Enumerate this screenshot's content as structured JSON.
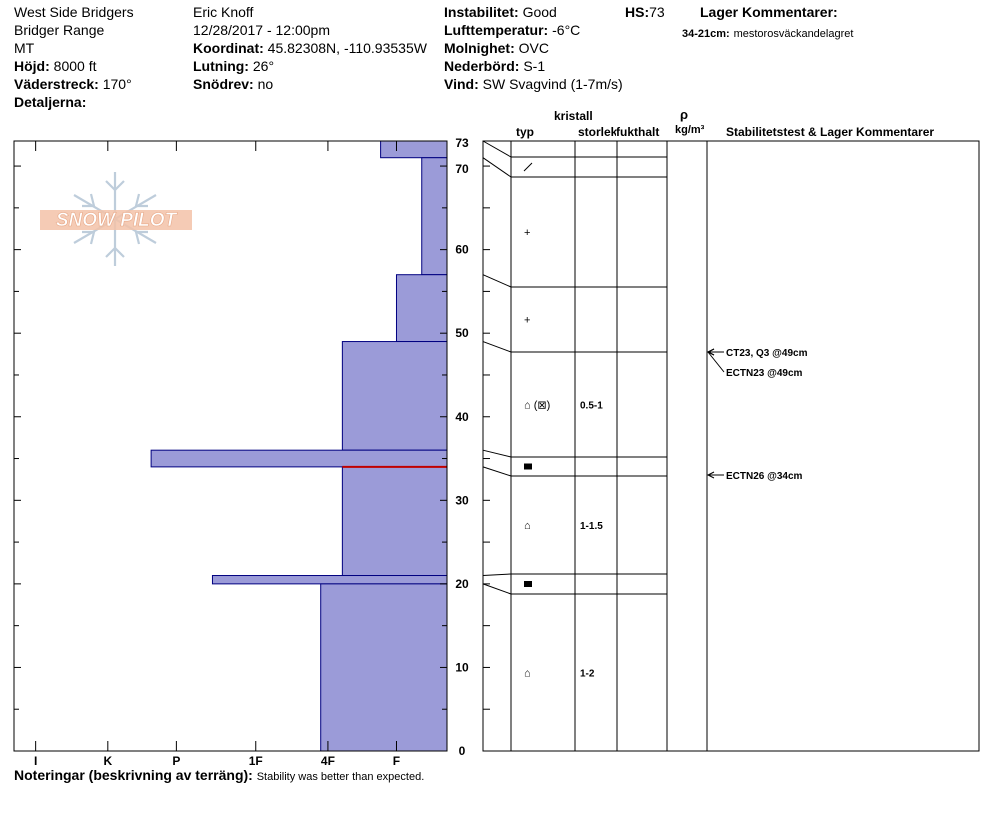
{
  "header": {
    "location": "West Side Bridgers",
    "range": "Bridger Range",
    "state": "MT",
    "elevation_label": "Höjd:",
    "elevation_value": "8000 ft",
    "aspect_label": "Väderstreck:",
    "aspect_value": "170°",
    "details_label": "Detaljerna:",
    "observer": "Eric Knoff",
    "datetime": "12/28/2017 - 12:00pm",
    "coord_label": "Koordinat:",
    "coord_value": "45.82308N, -110.93535W",
    "slope_label": "Lutning:",
    "slope_value": "26°",
    "drift_label": "Snödrev:",
    "drift_value": "no",
    "instability_label": "Instabilitet:",
    "instability_value": "Good",
    "hs_label": "HS:",
    "hs_value": "73",
    "airtemp_label": "Lufttemperatur:",
    "airtemp_value": "-6°C",
    "sky_label": "Molnighet:",
    "sky_value": "OVC",
    "precip_label": "Nederbörd:",
    "precip_value": "S-1",
    "wind_label": "Vind:",
    "wind_value": "SW  Svagvind (1-7m/s)",
    "layer_comments_label": "Lager Kommentarer:",
    "layer_comment_depth": "34-21cm:",
    "layer_comment_text": "mestorosväckandelagret"
  },
  "logo": {
    "text": "SNOW PILOT"
  },
  "columns": {
    "crystal": "kristall",
    "type": "typ",
    "size": "storlek",
    "moisture": "fukthalt",
    "rho": "ρ",
    "density_unit": "kg/m³",
    "stability": "Stabilitetstest & Lager Kommentarer"
  },
  "footer": {
    "notes_label": "Noteringar (beskrivning av terräng):",
    "notes_text": "Stability was better than expected."
  },
  "chart_data": {
    "type": "bar",
    "orientation": "horizontal-layers",
    "ylabel": "",
    "xlabel": "",
    "ylim": [
      0,
      73
    ],
    "ytick_labels": [
      "0",
      "10",
      "20",
      "30",
      "40",
      "50",
      "60",
      "70",
      "73"
    ],
    "hardness_scale": [
      "I",
      "K",
      "P",
      "1F",
      "4F",
      "F"
    ],
    "hardness_direction": "reversed",
    "colors": {
      "layer_fill": "#9b9bd8",
      "layer_edge": "#000080",
      "weak_line": "#c00000"
    },
    "layers": [
      {
        "top": 73,
        "bottom": 71,
        "hardness": 0.92,
        "crystal": "diagonal-stroke",
        "size": "",
        "moisture": "",
        "density": ""
      },
      {
        "top": 71,
        "bottom": 57,
        "hardness": 0.35,
        "crystal": "+",
        "size": "",
        "moisture": "",
        "density": ""
      },
      {
        "top": 57,
        "bottom": 49,
        "hardness": 0.7,
        "crystal": "+",
        "size": "",
        "moisture": "",
        "density": ""
      },
      {
        "top": 49,
        "bottom": 36,
        "hardness": 1.45,
        "crystal": "⌂ (⊠)",
        "size": "0.5-1",
        "moisture": "",
        "density": ""
      },
      {
        "top": 36,
        "bottom": 34,
        "hardness": 4.1,
        "crystal": "■",
        "size": "",
        "moisture": "",
        "density": ""
      },
      {
        "top": 34,
        "bottom": 21,
        "hardness": 1.45,
        "crystal": "⌂",
        "size": "1-1.5",
        "moisture": "",
        "density": ""
      },
      {
        "top": 21,
        "bottom": 20,
        "hardness": 3.25,
        "crystal": "■",
        "size": "",
        "moisture": "",
        "density": ""
      },
      {
        "top": 20,
        "bottom": 0,
        "hardness": 1.75,
        "crystal": "⌂",
        "size": "1-2",
        "moisture": "",
        "density": ""
      }
    ],
    "weak_layer_depth": 34,
    "tests": [
      {
        "depth": 49,
        "label": "CT23, Q3 @49cm"
      },
      {
        "depth": 49,
        "label": "ECTN23 @49cm"
      },
      {
        "depth": 34,
        "label": "ECTN26 @34cm"
      }
    ]
  }
}
